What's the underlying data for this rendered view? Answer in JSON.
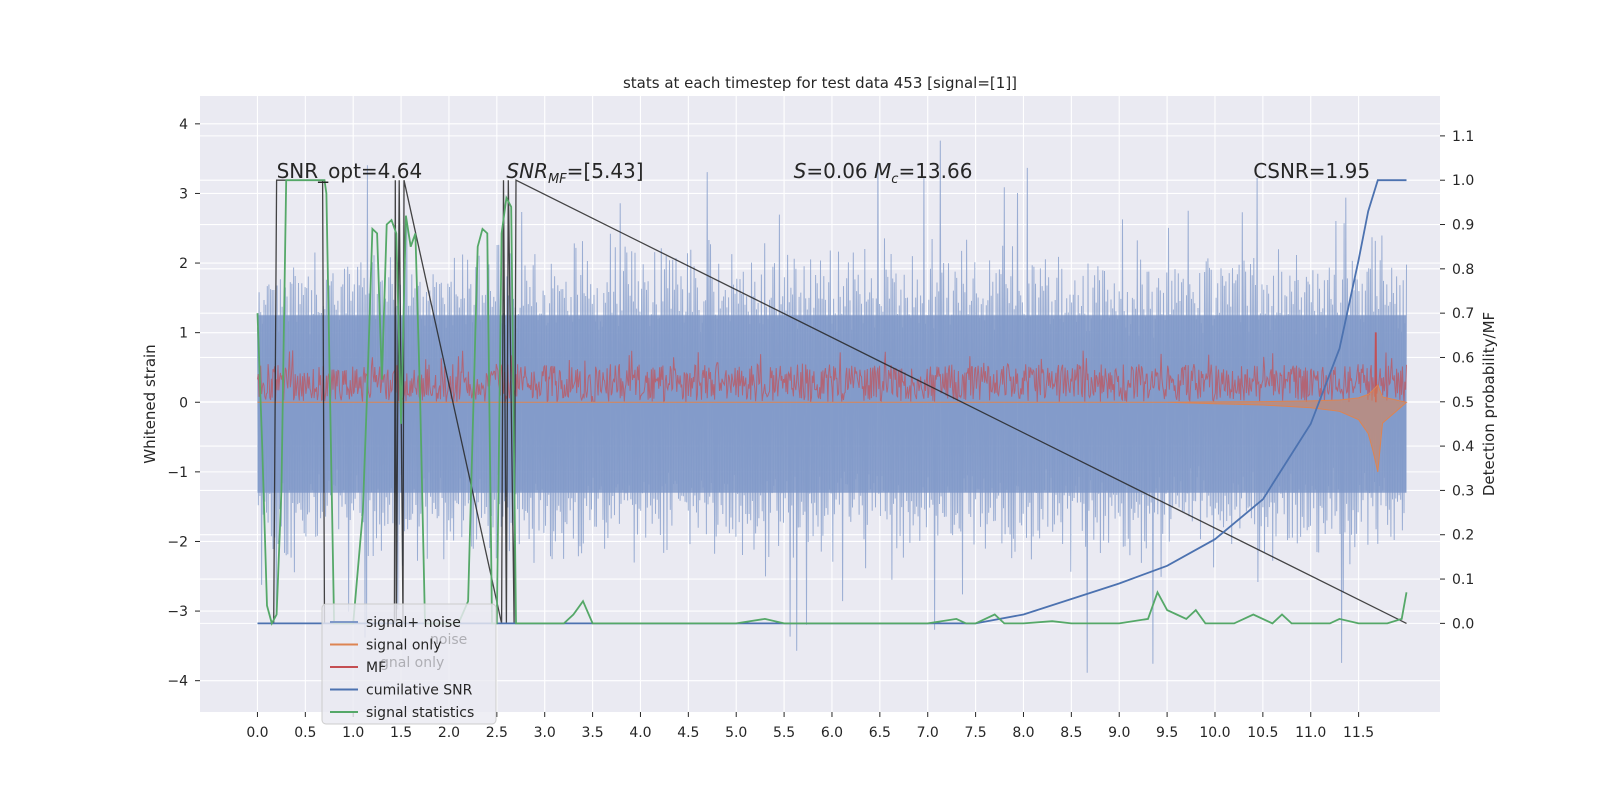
{
  "chart_data": {
    "type": "line",
    "title": "stats at each timestep for test data 453 [signal=[1]]",
    "ylabel": "Whitened strain",
    "ylabel_right": "Detection probability/MF",
    "xlim": [
      -0.6,
      12.35
    ],
    "ylim": [
      -4.45,
      4.4
    ],
    "ylim_right": [
      -0.2,
      1.19
    ],
    "xticks": [
      "0.0",
      "0.5",
      "1.0",
      "1.5",
      "2.0",
      "2.5",
      "3.0",
      "3.5",
      "4.0",
      "4.5",
      "5.0",
      "5.5",
      "6.0",
      "6.5",
      "7.0",
      "7.5",
      "8.0",
      "8.5",
      "9.0",
      "9.5",
      "10.0",
      "10.5",
      "11.0",
      "11.5"
    ],
    "xtick_values": [
      0,
      0.5,
      1,
      1.5,
      2,
      2.5,
      3,
      3.5,
      4,
      4.5,
      5,
      5.5,
      6,
      6.5,
      7,
      7.5,
      8,
      8.5,
      9,
      9.5,
      10,
      10.5,
      11,
      11.5
    ],
    "yticks": [
      "−4",
      "−3",
      "−2",
      "−1",
      "0",
      "1",
      "2",
      "3",
      "4"
    ],
    "ytick_values": [
      -4,
      -3,
      -2,
      -1,
      0,
      1,
      2,
      3,
      4
    ],
    "yticks_right": [
      "0.0",
      "0.1",
      "0.2",
      "0.3",
      "0.4",
      "0.5",
      "0.6",
      "0.7",
      "0.8",
      "0.9",
      "1.0",
      "1.1"
    ],
    "ytick_values_right": [
      0,
      0.1,
      0.2,
      0.3,
      0.4,
      0.5,
      0.6,
      0.7,
      0.8,
      0.9,
      1.0,
      1.1
    ],
    "grid": true,
    "legend_position": "bottom-left",
    "annotations": [
      {
        "text": "SNR_opt=4.64",
        "x": 0.2,
        "y": 1.0
      },
      {
        "text": "SNR_MF=[5.43]",
        "x": 2.6,
        "y": 1.0
      },
      {
        "text": "S=0.06   M_c=13.66",
        "x": 5.6,
        "y": 1.0
      },
      {
        "text": "CSNR=1.95",
        "x": 10.4,
        "y": 1.0
      }
    ],
    "series": [
      {
        "name": "signal+ noise",
        "axis": "left",
        "color": "#7f98c8",
        "style": "noise band",
        "x_range": [
          0,
          12
        ],
        "typical_abs": 2.0,
        "peak_abs": 4.05
      },
      {
        "name": "signal only",
        "axis": "left",
        "color": "#dd8452",
        "style": "chirp",
        "x": [
          0,
          6,
          8,
          9,
          9.5,
          10,
          10.5,
          11,
          11.3,
          11.5,
          11.6,
          11.65,
          11.7,
          11.75,
          12
        ],
        "y": [
          0,
          0,
          0,
          0,
          0,
          -0.02,
          -0.04,
          -0.08,
          -0.13,
          -0.25,
          -0.45,
          -0.7,
          -1.0,
          -0.3,
          0
        ]
      },
      {
        "name": "MF",
        "axis": "left",
        "color": "#c44e52",
        "style": "noise band",
        "x_range": [
          0,
          12
        ],
        "y_range": [
          0,
          0.55
        ],
        "peak": {
          "x": 11.68,
          "y": 1.0
        }
      },
      {
        "name": "cumilative SNR",
        "axis": "right",
        "color": "#4c72b0",
        "x": [
          0,
          7,
          7.5,
          8,
          8.5,
          9,
          9.5,
          10,
          10.5,
          11,
          11.3,
          11.5,
          11.6,
          11.7,
          11.8,
          12
        ],
        "y": [
          0,
          0,
          0,
          0.02,
          0.055,
          0.09,
          0.13,
          0.19,
          0.28,
          0.45,
          0.62,
          0.82,
          0.93,
          1.0,
          1.0,
          1.0
        ]
      },
      {
        "name": "signal statistics",
        "axis": "right",
        "color": "#55a868",
        "x": [
          0,
          0.05,
          0.1,
          0.15,
          0.2,
          0.25,
          0.3,
          0.4,
          0.5,
          0.6,
          0.7,
          0.72,
          0.8,
          0.9,
          1.0,
          1.1,
          1.15,
          1.2,
          1.25,
          1.3,
          1.35,
          1.4,
          1.45,
          1.5,
          1.55,
          1.6,
          1.65,
          1.7,
          1.75,
          1.8,
          1.9,
          2.0,
          2.1,
          2.2,
          2.3,
          2.35,
          2.4,
          2.45,
          2.5,
          2.55,
          2.6,
          2.65,
          2.7,
          2.75,
          2.8,
          3.0,
          3.2,
          3.3,
          3.4,
          3.5,
          4.0,
          4.5,
          5.0,
          5.3,
          5.5,
          6.0,
          6.5,
          7.0,
          7.3,
          7.4,
          7.5,
          7.7,
          7.8,
          8.0,
          8.3,
          8.5,
          9.0,
          9.3,
          9.4,
          9.5,
          9.6,
          9.7,
          9.8,
          9.9,
          10.0,
          10.2,
          10.4,
          10.6,
          10.7,
          10.8,
          11.0,
          11.2,
          11.3,
          11.5,
          11.8,
          11.95,
          12.0
        ],
        "y": [
          0.7,
          0.4,
          0.04,
          0.0,
          0.02,
          0.3,
          1.0,
          1.0,
          1.0,
          1.0,
          1.0,
          0.97,
          0.0,
          0.0,
          0.0,
          0.25,
          0.55,
          0.89,
          0.88,
          0.55,
          0.9,
          0.91,
          0.88,
          0.45,
          0.92,
          0.85,
          0.88,
          0.5,
          0.0,
          0.0,
          0.0,
          0.0,
          0.0,
          0.05,
          0.85,
          0.89,
          0.88,
          0.0,
          0.0,
          0.88,
          0.96,
          0.94,
          0.0,
          0.0,
          0.0,
          0.0,
          0.0,
          0.02,
          0.05,
          0.0,
          0.0,
          0.0,
          0.0,
          0.01,
          0.0,
          0.0,
          0.0,
          0.0,
          0.01,
          0.0,
          0.0,
          0.02,
          0.0,
          0.0,
          0.005,
          0.0,
          0.0,
          0.01,
          0.07,
          0.03,
          0.02,
          0.01,
          0.03,
          0.0,
          0.0,
          0.0,
          0.02,
          0.0,
          0.02,
          0.0,
          0.0,
          0.0,
          0.01,
          0.0,
          0.0,
          0.01,
          0.07
        ]
      },
      {
        "name": "",
        "axis": "right",
        "color": "#262626",
        "style": "black steps",
        "x": [
          0,
          0.17,
          0.2,
          0.68,
          0.7,
          1.43,
          1.44,
          1.45,
          1.48,
          1.52,
          1.53,
          2.55,
          2.57,
          2.6,
          2.62,
          2.68,
          2.7,
          12
        ],
        "y": [
          0,
          0,
          1.0,
          1.0,
          0,
          0,
          1.0,
          0,
          1.0,
          0,
          1.0,
          0,
          1.0,
          0,
          1.0,
          0,
          1.0,
          0
        ]
      }
    ],
    "legend": [
      "signal+ noise",
      "signal only",
      "MF",
      "cumilative SNR",
      "signal statistics"
    ]
  },
  "legend_ghost": [
    "noise",
    "gnal only"
  ]
}
